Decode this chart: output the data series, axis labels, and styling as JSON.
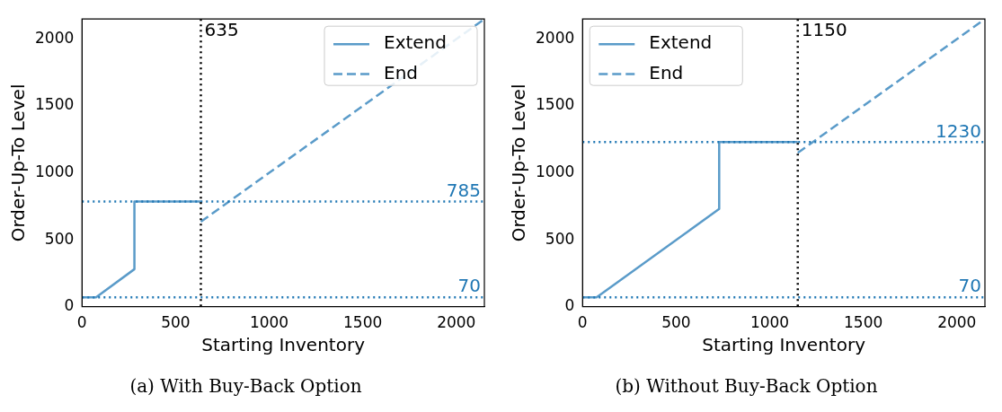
{
  "chart_data": [
    {
      "type": "line",
      "title": "(a) With Buy-Back Option",
      "xlabel": "Starting Inventory",
      "ylabel": "Order-Up-To Level",
      "xlim": [
        0,
        2150
      ],
      "ylim": [
        0,
        2150
      ],
      "xticks": [
        0,
        500,
        1000,
        1500,
        2000
      ],
      "yticks": [
        0,
        500,
        1000,
        1500,
        2000
      ],
      "legend": "top right",
      "series": [
        {
          "name": "Extend",
          "color": "#5a9bc9",
          "line_style": "solid",
          "x": [
            0,
            75,
            280,
            280,
            635
          ],
          "values": [
            70,
            70,
            280,
            785,
            785
          ]
        },
        {
          "name": "End",
          "color": "#5a9bc9",
          "line_style": "dashed",
          "x": [
            635,
            2150
          ],
          "values": [
            635,
            2150
          ]
        }
      ],
      "ref_lines": [
        {
          "axis": "y",
          "value": 785,
          "label": "785",
          "color": "#1f77b4",
          "line_style": "dotted"
        },
        {
          "axis": "y",
          "value": 70,
          "label": "70",
          "color": "#1f77b4",
          "line_style": "dotted"
        },
        {
          "axis": "x",
          "value": 635,
          "label": "635",
          "color": "#000000",
          "line_style": "dotted"
        }
      ]
    },
    {
      "type": "line",
      "title": "(b) Without Buy-Back Option",
      "xlabel": "Starting Inventory",
      "ylabel": "Order-Up-To Level",
      "xlim": [
        0,
        2150
      ],
      "ylim": [
        0,
        2150
      ],
      "xticks": [
        0,
        500,
        1000,
        1500,
        2000
      ],
      "yticks": [
        0,
        500,
        1000,
        1500,
        2000
      ],
      "legend": "top left",
      "series": [
        {
          "name": "Extend",
          "color": "#5a9bc9",
          "line_style": "solid",
          "x": [
            0,
            75,
            730,
            730,
            1150
          ],
          "values": [
            70,
            70,
            730,
            1230,
            1230
          ]
        },
        {
          "name": "End",
          "color": "#5a9bc9",
          "line_style": "dashed",
          "x": [
            1150,
            2150
          ],
          "values": [
            1150,
            2150
          ]
        }
      ],
      "ref_lines": [
        {
          "axis": "y",
          "value": 1230,
          "label": "1230",
          "color": "#1f77b4",
          "line_style": "dotted"
        },
        {
          "axis": "y",
          "value": 70,
          "label": "70",
          "color": "#1f77b4",
          "line_style": "dotted"
        },
        {
          "axis": "x",
          "value": 1150,
          "label": "1150",
          "color": "#000000",
          "line_style": "dotted"
        }
      ]
    }
  ]
}
